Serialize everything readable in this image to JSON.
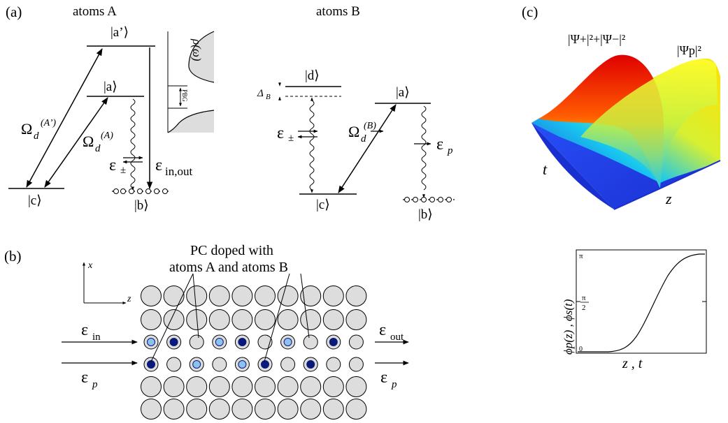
{
  "panel_a": {
    "label": "(a)",
    "atoms_a_title": "atoms A",
    "atoms_b_title": "atoms B",
    "level_a_prime": "|a’⟩",
    "level_a": "|a⟩",
    "level_c": "|c⟩",
    "level_b": "|b⟩",
    "level_d": "|d⟩",
    "level_a_b": "|a⟩",
    "level_c_b": "|c⟩",
    "level_b_b": "|b⟩",
    "omega_a_prime": "Ω",
    "omega_a_prime_sub": "d",
    "omega_a_prime_sup": "(A’)",
    "omega_a": "Ω",
    "omega_a_sub": "d",
    "omega_a_sup": "(A)",
    "omega_b": "Ω",
    "omega_b_sub": "d",
    "omega_b_sup": "(B)",
    "eps_pm": "ε",
    "eps_pm_sub": "±",
    "eps_inout": "ε",
    "eps_inout_sub": "in,out",
    "eps_pm_b": "ε",
    "eps_pm_b_sub": "±",
    "eps_p": "ε",
    "eps_p_sub": "p",
    "delta_b": "Δ",
    "delta_b_sub": "B",
    "rho_label": "ρ(ω)",
    "pbg_label": "PBG"
  },
  "panel_b": {
    "label": "(b)",
    "doped_line1": "PC doped with",
    "doped_line2": "atoms A and atoms B",
    "axis_x": "x",
    "axis_z": "z",
    "eps_in": "ε",
    "eps_in_sub": "in",
    "eps_p_in": "ε",
    "eps_p_in_sub": "p",
    "eps_out": "ε",
    "eps_out_sub": "out",
    "eps_p_out": "ε",
    "eps_p_out_sub": "p",
    "row3_atoms": [
      "light",
      "dark",
      "",
      "light",
      "dark",
      "",
      "light",
      "",
      "dark"
    ],
    "row4_atoms": [
      "dark",
      "",
      "light",
      "",
      "light",
      "dark",
      "",
      "dark",
      ""
    ]
  },
  "panel_c": {
    "label": "(c)",
    "surface_label_pm": "|Ψ+|²+|Ψ−|²",
    "surface_label_p": "|Ψp|²",
    "axis_t": "t",
    "axis_z": "z",
    "phase_ylabel": "ϕp(z) , ϕs(t)",
    "phase_xlabel": "z , t",
    "tick_pi": "π",
    "tick_pi_half_num": "π",
    "tick_pi_half_den": "2",
    "tick_zero": "0"
  }
}
